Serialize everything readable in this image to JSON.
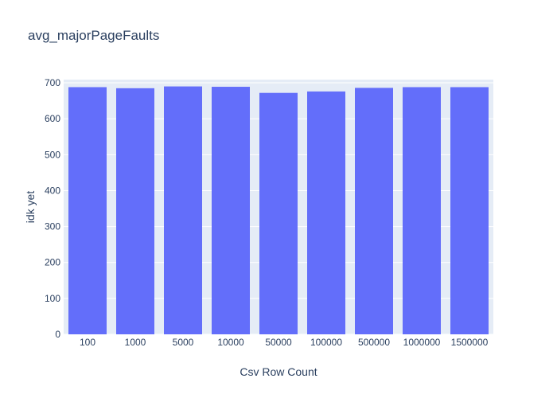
{
  "chart_data": {
    "type": "bar",
    "title": "avg_majorPageFaults",
    "xlabel": "Csv Row Count",
    "ylabel": "idk yet",
    "categories": [
      "100",
      "1000",
      "5000",
      "10000",
      "50000",
      "100000",
      "500000",
      "1000000",
      "1500000"
    ],
    "values": [
      688,
      685,
      690,
      689,
      672,
      676,
      686,
      688,
      688
    ],
    "ylim": [
      0,
      709
    ],
    "yticks": [
      0,
      100,
      200,
      300,
      400,
      500,
      600,
      700
    ],
    "grid": true,
    "bar_color": "#636efa",
    "plot_background": "#e5ecf6",
    "text_color": "#2a3f5f"
  }
}
